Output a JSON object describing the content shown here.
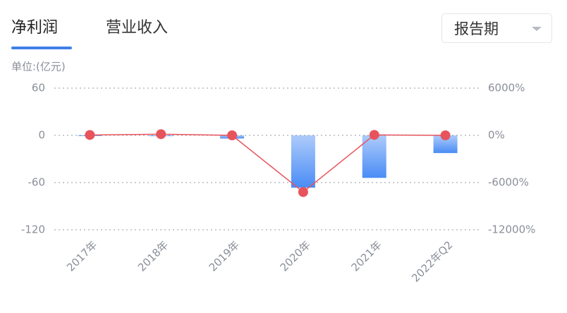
{
  "tabs": [
    "净利润",
    "营业收入"
  ],
  "active_tab": 0,
  "dropdown": "报告期",
  "chart_data": {
    "type": "bar",
    "y_label": "单位:(亿元)",
    "categories": [
      "2017年",
      "2018年",
      "2019年",
      "2020年",
      "2021年",
      "2022年Q2"
    ],
    "series": [
      {
        "type": "bar",
        "color": "#4a8cf5",
        "values": [
          -0.5,
          -1,
          -4,
          -66.5,
          -54,
          -22.5
        ]
      },
      {
        "type": "line",
        "axis": "y2",
        "color": "#e8545c",
        "values": [
          50,
          150,
          0,
          -7200,
          60,
          0
        ]
      }
    ],
    "ylim": [
      -120,
      60
    ],
    "yticks": [
      60,
      0,
      -60,
      -120
    ],
    "y2lim": [
      -12000,
      6000
    ],
    "y2ticks": [
      {
        "value": 6000,
        "label": "6000%"
      },
      {
        "value": 0,
        "label": "0%"
      },
      {
        "value": -6000,
        "label": "-6000%"
      },
      {
        "value": -12000,
        "label": "-12000%"
      }
    ],
    "grid": true
  }
}
